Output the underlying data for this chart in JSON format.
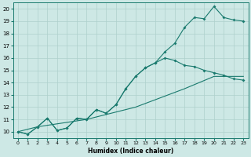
{
  "xlabel": "Humidex (Indice chaleur)",
  "ylabel": "",
  "xlim": [
    -0.5,
    23.5
  ],
  "ylim": [
    9.5,
    20.5
  ],
  "xticks": [
    0,
    1,
    2,
    3,
    4,
    5,
    6,
    7,
    8,
    9,
    10,
    11,
    12,
    13,
    14,
    15,
    16,
    17,
    18,
    19,
    20,
    21,
    22,
    23
  ],
  "yticks": [
    10,
    11,
    12,
    13,
    14,
    15,
    16,
    17,
    18,
    19,
    20
  ],
  "background_color": "#cde8e5",
  "grid_color": "#aed0cc",
  "line_color": "#1a7a6e",
  "curve1_x": [
    0,
    1,
    2,
    3,
    4,
    5,
    6,
    7,
    8,
    9,
    10,
    11,
    12,
    13,
    14,
    15,
    16,
    17,
    18,
    19,
    20,
    21,
    22,
    23
  ],
  "curve1_y": [
    10.0,
    9.8,
    10.4,
    11.1,
    10.1,
    10.3,
    11.1,
    11.0,
    11.8,
    11.5,
    12.2,
    13.5,
    14.5,
    15.2,
    15.6,
    16.5,
    17.2,
    18.5,
    19.3,
    19.2,
    20.2,
    19.3,
    19.1,
    19.0
  ],
  "curve2_x": [
    0,
    1,
    2,
    3,
    4,
    5,
    6,
    7,
    8,
    9,
    10,
    11,
    12,
    13,
    14,
    15,
    16,
    17,
    18,
    19,
    20,
    21,
    22,
    23
  ],
  "curve2_y": [
    10.0,
    9.8,
    10.4,
    11.1,
    10.1,
    10.3,
    11.1,
    11.0,
    11.8,
    11.5,
    12.2,
    13.5,
    14.5,
    15.2,
    15.6,
    16.0,
    15.8,
    15.4,
    15.3,
    15.0,
    14.8,
    14.6,
    14.3,
    14.2
  ],
  "curve3_x": [
    0,
    2,
    7,
    12,
    17,
    20,
    23
  ],
  "curve3_y": [
    10.0,
    10.4,
    11.0,
    12.0,
    13.5,
    14.5,
    14.5
  ]
}
